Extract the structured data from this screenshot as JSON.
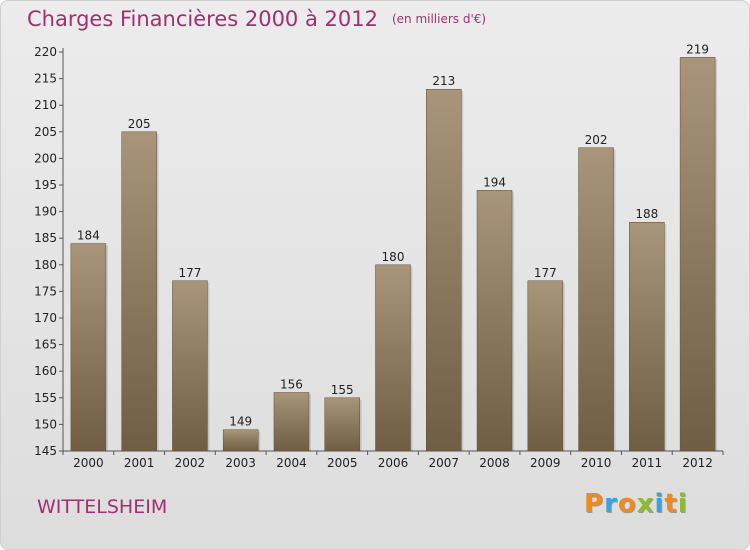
{
  "chart_data": {
    "type": "bar",
    "title": "Charges Financières 2000 à 2012",
    "subtitle": "(en milliers d'€)",
    "categories": [
      "2000",
      "2001",
      "2002",
      "2003",
      "2004",
      "2005",
      "2006",
      "2007",
      "2008",
      "2009",
      "2010",
      "2011",
      "2012"
    ],
    "values": [
      184,
      205,
      177,
      149,
      156,
      155,
      180,
      213,
      194,
      177,
      202,
      188,
      219
    ],
    "ylim": [
      145,
      220
    ],
    "yticks": [
      145,
      150,
      155,
      160,
      165,
      170,
      175,
      180,
      185,
      190,
      195,
      200,
      205,
      210,
      215,
      220
    ],
    "grid": false,
    "bar_color": "#8f7c5f",
    "bar_color_light": "#a8957a",
    "bar_color_dark": "#6f5e44"
  },
  "footer": {
    "city": "WITTELSHEIM",
    "logo_letters": [
      {
        "char": "P",
        "color": "#f08a1d"
      },
      {
        "char": "r",
        "color": "#3ba3d8"
      },
      {
        "char": "o",
        "color": "#f08a1d"
      },
      {
        "char": "x",
        "color": "#8cbd2a"
      },
      {
        "char": "i",
        "color": "#3ba3d8"
      },
      {
        "char": "t",
        "color": "#f08a1d"
      },
      {
        "char": "i",
        "color": "#8cbd2a"
      }
    ]
  },
  "colors": {
    "title": "#a0306f",
    "axis": "#555555"
  }
}
